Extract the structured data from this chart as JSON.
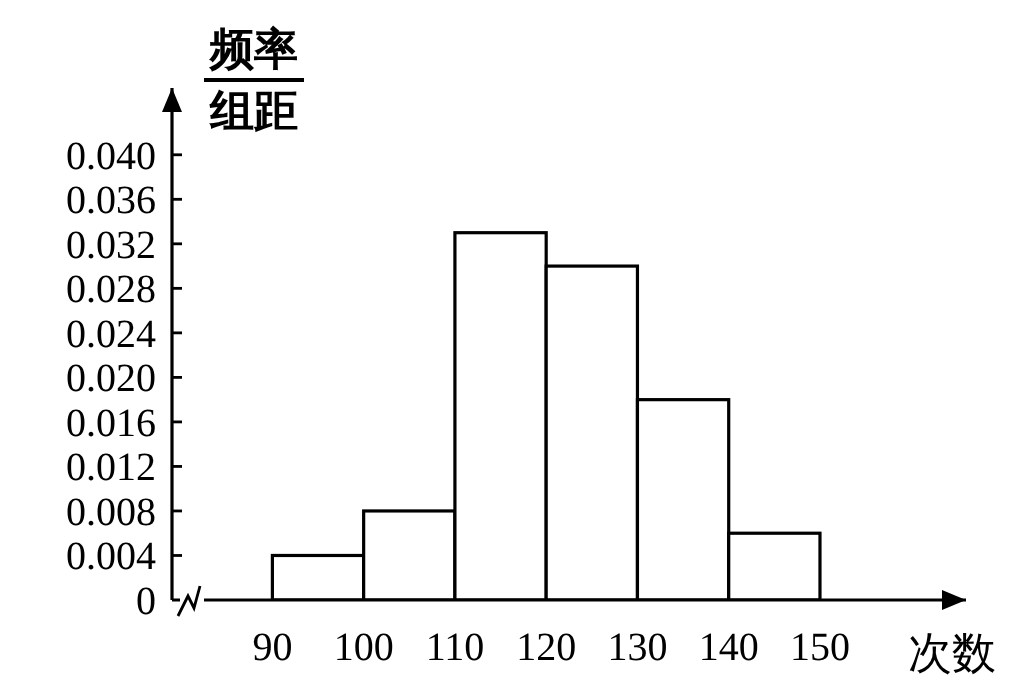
{
  "chart_data": {
    "type": "histogram",
    "ylabel": "频率组距",
    "xlabel": "次数",
    "bins": [
      90,
      100,
      110,
      120,
      130,
      140,
      150
    ],
    "values": [
      0.004,
      0.008,
      0.033,
      0.03,
      0.018,
      0.006
    ],
    "color": "#ffffff",
    "xlim": [
      79,
      166
    ],
    "xticks": [
      90,
      100,
      110,
      120,
      130,
      140,
      150
    ],
    "ylim": [
      0,
      0.046
    ],
    "yticks": [
      {
        "value": 0,
        "label": "0"
      },
      0.004,
      0.008,
      0.012,
      0.016,
      {
        "value": 0.02,
        "label": "0.020"
      },
      0.024,
      0.028,
      0.032,
      0.036,
      {
        "value": 0.04,
        "label": "0.040"
      }
    ],
    "grid": false,
    "legend": false
  }
}
